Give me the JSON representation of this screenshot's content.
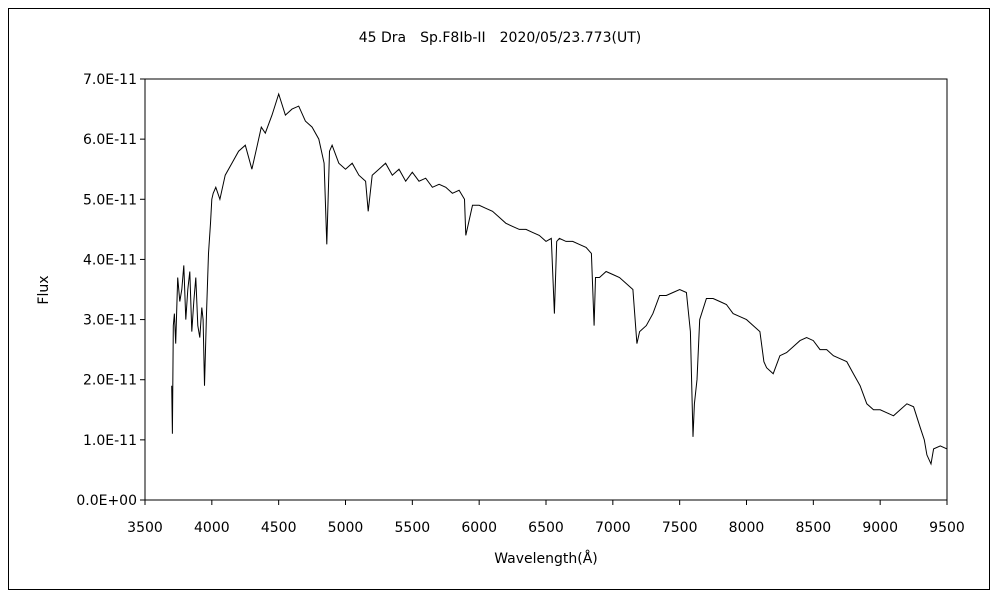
{
  "chart_data": {
    "type": "line",
    "title": "45 Dra　Sp.F8Ib-II　2020/05/23.773(UT)",
    "xlabel": "Wavelength(Å)",
    "ylabel": "Flux",
    "xlim": [
      3500,
      9500
    ],
    "ylim": [
      0,
      7e-11
    ],
    "x_ticks": [
      "3500",
      "4000",
      "4500",
      "5000",
      "5500",
      "6000",
      "6500",
      "7000",
      "7500",
      "8000",
      "8500",
      "9000",
      "9500"
    ],
    "y_ticks": [
      "0.0E+00",
      "1.0E-11",
      "2.0E-11",
      "3.0E-11",
      "4.0E-11",
      "5.0E-11",
      "6.0E-11",
      "7.0E-11"
    ],
    "grid": false,
    "line_color": "#000000",
    "series": [
      {
        "x": [
          3700,
          3705,
          3712,
          3720,
          3730,
          3745,
          3760,
          3775,
          3790,
          3805,
          3820,
          3835,
          3850,
          3865,
          3880,
          3895,
          3910,
          3925,
          3935,
          3945,
          3960,
          3975,
          3990,
          4000,
          4010,
          4030,
          4060,
          4100,
          4150,
          4200,
          4250,
          4300,
          4340,
          4370,
          4400,
          4450,
          4500,
          4550,
          4600,
          4650,
          4700,
          4750,
          4800,
          4840,
          4860,
          4880,
          4900,
          4950,
          5000,
          5050,
          5100,
          5150,
          5170,
          5200,
          5250,
          5300,
          5350,
          5400,
          5450,
          5500,
          5550,
          5600,
          5650,
          5700,
          5750,
          5800,
          5850,
          5890,
          5900,
          5950,
          6000,
          6050,
          6100,
          6150,
          6200,
          6250,
          6300,
          6350,
          6400,
          6450,
          6500,
          6540,
          6563,
          6580,
          6600,
          6650,
          6700,
          6750,
          6800,
          6840,
          6860,
          6870,
          6900,
          6950,
          7000,
          7050,
          7100,
          7150,
          7180,
          7200,
          7250,
          7300,
          7350,
          7400,
          7450,
          7500,
          7550,
          7580,
          7600,
          7610,
          7630,
          7650,
          7700,
          7750,
          7800,
          7850,
          7900,
          7950,
          8000,
          8050,
          8100,
          8130,
          8150,
          8200,
          8250,
          8300,
          8350,
          8400,
          8450,
          8500,
          8550,
          8600,
          8650,
          8700,
          8750,
          8800,
          8850,
          8900,
          8950,
          9000,
          9050,
          9100,
          9150,
          9200,
          9250,
          9300,
          9330,
          9350,
          9380,
          9400,
          9450,
          9500
        ],
        "y": [
          1.9e-11,
          1.1e-11,
          2.9e-11,
          3.1e-11,
          2.6e-11,
          3.7e-11,
          3.3e-11,
          3.5e-11,
          3.9e-11,
          3e-11,
          3.5e-11,
          3.8e-11,
          2.8e-11,
          3.3e-11,
          3.7e-11,
          2.9e-11,
          2.7e-11,
          3.2e-11,
          3e-11,
          1.9e-11,
          3.1e-11,
          4.1e-11,
          4.6e-11,
          5e-11,
          5.1e-11,
          5.2e-11,
          5e-11,
          5.4e-11,
          5.6e-11,
          5.8e-11,
          5.9e-11,
          5.5e-11,
          5.9e-11,
          6.2e-11,
          6.1e-11,
          6.4e-11,
          6.75e-11,
          6.4e-11,
          6.5e-11,
          6.55e-11,
          6.3e-11,
          6.2e-11,
          6e-11,
          5.6e-11,
          4.25e-11,
          5.8e-11,
          5.9e-11,
          5.6e-11,
          5.5e-11,
          5.6e-11,
          5.4e-11,
          5.3e-11,
          4.8e-11,
          5.4e-11,
          5.5e-11,
          5.6e-11,
          5.4e-11,
          5.5e-11,
          5.3e-11,
          5.45e-11,
          5.3e-11,
          5.35e-11,
          5.2e-11,
          5.25e-11,
          5.2e-11,
          5.1e-11,
          5.15e-11,
          5e-11,
          4.4e-11,
          4.9e-11,
          4.9e-11,
          4.85e-11,
          4.8e-11,
          4.7e-11,
          4.6e-11,
          4.55e-11,
          4.5e-11,
          4.5e-11,
          4.45e-11,
          4.4e-11,
          4.3e-11,
          4.35e-11,
          3.1e-11,
          4.3e-11,
          4.35e-11,
          4.3e-11,
          4.3e-11,
          4.25e-11,
          4.2e-11,
          4.1e-11,
          2.9e-11,
          3.7e-11,
          3.7e-11,
          3.8e-11,
          3.75e-11,
          3.7e-11,
          3.6e-11,
          3.5e-11,
          2.6e-11,
          2.8e-11,
          2.9e-11,
          3.1e-11,
          3.4e-11,
          3.4e-11,
          3.45e-11,
          3.5e-11,
          3.45e-11,
          2.8e-11,
          1.05e-11,
          1.6e-11,
          2e-11,
          3e-11,
          3.35e-11,
          3.35e-11,
          3.3e-11,
          3.25e-11,
          3.1e-11,
          3.05e-11,
          3e-11,
          2.9e-11,
          2.8e-11,
          2.3e-11,
          2.2e-11,
          2.1e-11,
          2.4e-11,
          2.45e-11,
          2.55e-11,
          2.65e-11,
          2.7e-11,
          2.65e-11,
          2.5e-11,
          2.5e-11,
          2.4e-11,
          2.35e-11,
          2.3e-11,
          2.1e-11,
          1.9e-11,
          1.6e-11,
          1.5e-11,
          1.5e-11,
          1.45e-11,
          1.4e-11,
          1.5e-11,
          1.6e-11,
          1.55e-11,
          1.2e-11,
          1e-11,
          7.5e-12,
          6e-12,
          8.5e-12,
          9e-12,
          8.5e-12
        ]
      }
    ]
  }
}
